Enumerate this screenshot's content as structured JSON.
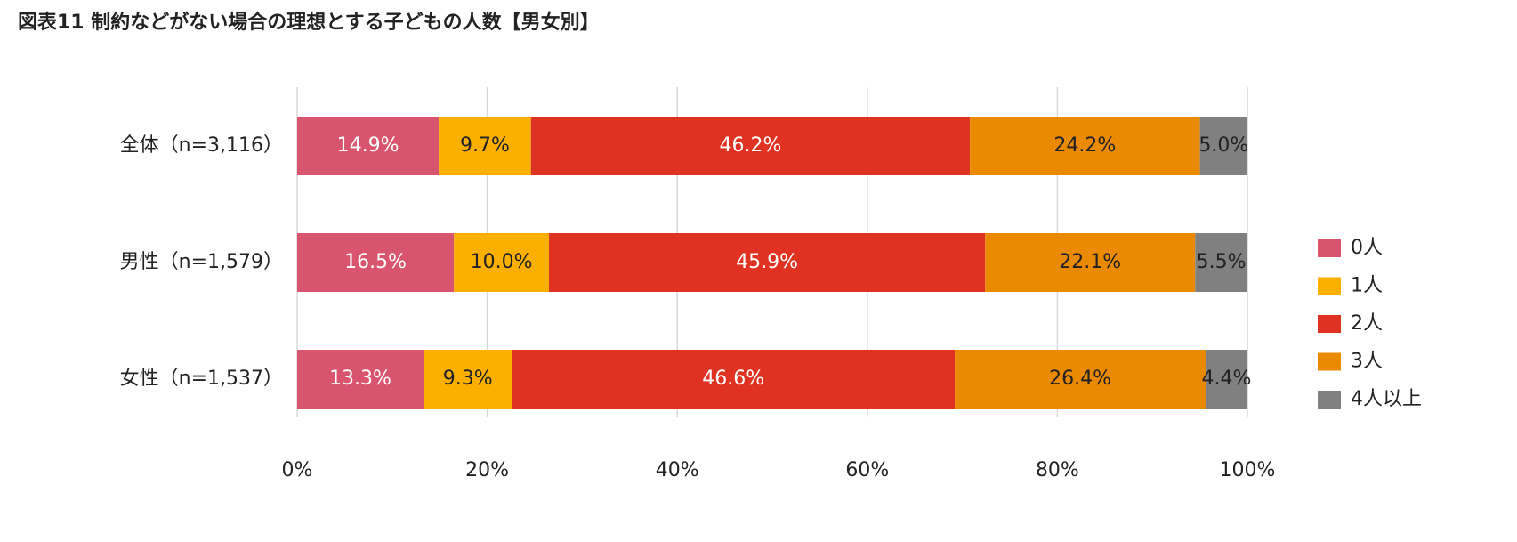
{
  "chart_data": {
    "type": "stacked-bar-horizontal",
    "title": "図表11 制約などがない場合の理想とする子どもの人数【男女別】",
    "categories": [
      "全体（n=3,116）",
      "男性（n=1,579）",
      "女性（n=1,537）"
    ],
    "series": [
      {
        "name": "0人",
        "color": "#d9546e",
        "values": [
          14.9,
          16.5,
          13.3
        ],
        "value_labels": [
          "14.9%",
          "16.5%",
          "13.3%"
        ]
      },
      {
        "name": "1人",
        "color": "#fbb000",
        "values": [
          9.7,
          10.0,
          9.3
        ],
        "value_labels": [
          "9.7%",
          "10.0%",
          "9.3%"
        ]
      },
      {
        "name": "2人",
        "color": "#e03222",
        "values": [
          46.2,
          45.9,
          46.6
        ],
        "value_labels": [
          "46.2%",
          "45.9%",
          "46.6%"
        ]
      },
      {
        "name": "3人",
        "color": "#ea8a00",
        "values": [
          24.2,
          22.1,
          26.4
        ],
        "value_labels": [
          "24.2%",
          "22.1%",
          "26.4%"
        ]
      },
      {
        "name": "4人以上",
        "color": "#808080",
        "values": [
          5.0,
          5.5,
          4.4
        ],
        "value_labels": [
          "5.0%",
          "5.5%",
          "4.4%"
        ]
      }
    ],
    "xlim": [
      0,
      100
    ],
    "xticks": [
      {
        "value": 0,
        "label": "0%"
      },
      {
        "value": 20,
        "label": "20%"
      },
      {
        "value": 40,
        "label": "40%"
      },
      {
        "value": 60,
        "label": "60%"
      },
      {
        "value": 80,
        "label": "80%"
      },
      {
        "value": 100,
        "label": "100%"
      }
    ],
    "grid": true,
    "legend": "right"
  }
}
